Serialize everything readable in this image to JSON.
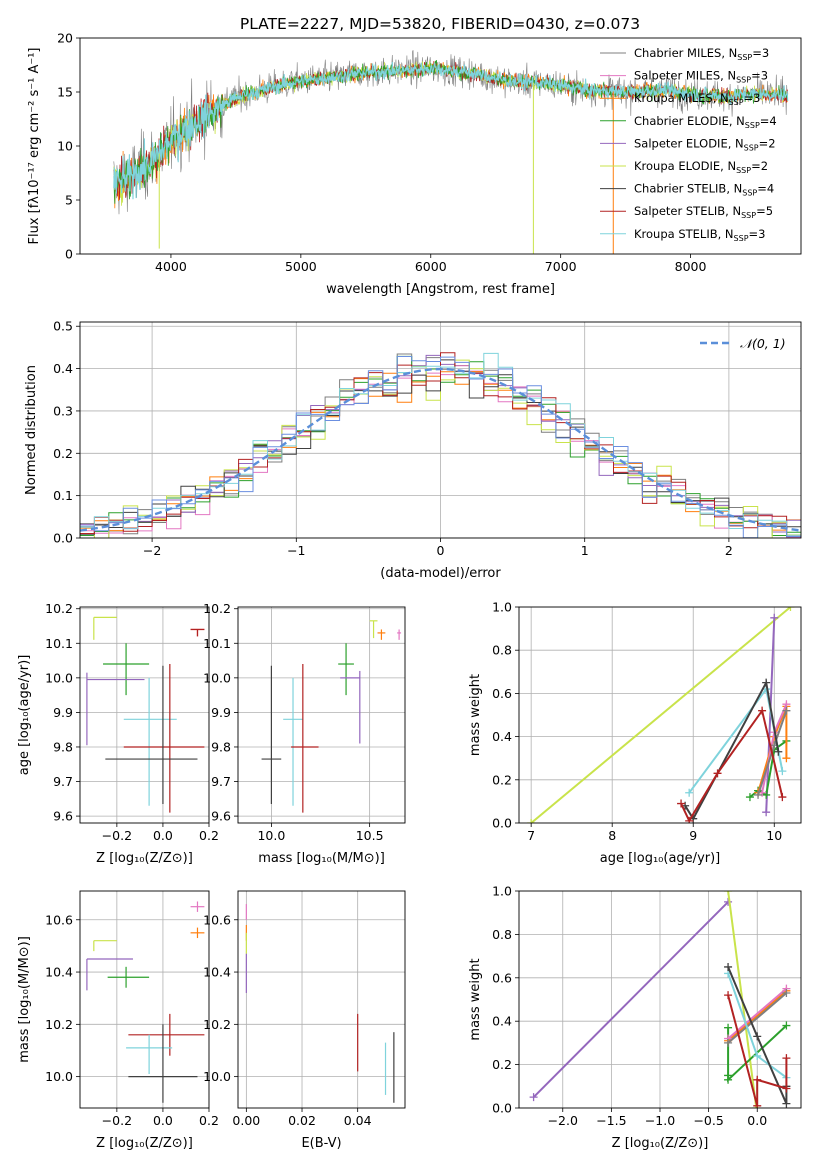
{
  "colors": {
    "Chabrier MILES": "#7f7f7f",
    "Salpeter MILES": "#e377c2",
    "Kroupa MILES": "#ff7f0e",
    "Chabrier ELODIE": "#2ca02c",
    "Salpeter ELODIE": "#9467bd",
    "Kroupa ELODIE": "#c9e34b",
    "Chabrier STELIB": "#404040",
    "Salpeter STELIB": "#b22222",
    "Kroupa STELIB": "#7fd3dc",
    "gauss": "#5b8fd9",
    "blue": "#6b8fe0"
  },
  "chart_data": [
    {
      "id": "spectrum",
      "type": "line",
      "title": "PLATE=2227, MJD=53820, FIBERID=0430, z=0.073",
      "xlabel": "wavelength [Angstrom, rest frame]",
      "ylabel": "Flux [fλ10⁻¹⁷ erg cm⁻² s⁻¹ A⁻¹]",
      "xlim": [
        3300,
        8850
      ],
      "ylim": [
        0,
        20
      ],
      "xticks": [
        4000,
        5000,
        6000,
        7000,
        8000
      ],
      "yticks": [
        0,
        5,
        10,
        15,
        20
      ],
      "grid": false,
      "legend": [
        {
          "name": "Chabrier MILES, N",
          "sub": "SSP",
          "tail": "=3",
          "color_key": "Chabrier MILES"
        },
        {
          "name": "Salpeter MILES, N",
          "sub": "SSP",
          "tail": "=3",
          "color_key": "Salpeter MILES"
        },
        {
          "name": "Kroupa MILES, N",
          "sub": "SSP",
          "tail": "=3",
          "color_key": "Kroupa MILES"
        },
        {
          "name": "Chabrier ELODIE, N",
          "sub": "SSP",
          "tail": "=4",
          "color_key": "Chabrier ELODIE"
        },
        {
          "name": "Salpeter ELODIE, N",
          "sub": "SSP",
          "tail": "=2",
          "color_key": "Salpeter ELODIE"
        },
        {
          "name": "Kroupa ELODIE, N",
          "sub": "SSP",
          "tail": "=2",
          "color_key": "Kroupa ELODIE"
        },
        {
          "name": "Chabrier STELIB, N",
          "sub": "SSP",
          "tail": "=4",
          "color_key": "Chabrier STELIB"
        },
        {
          "name": "Salpeter STELIB, N",
          "sub": "SSP",
          "tail": "=5",
          "color_key": "Salpeter STELIB"
        },
        {
          "name": "Kroupa STELIB, N",
          "sub": "SSP",
          "tail": "=3",
          "color_key": "Kroupa STELIB"
        }
      ],
      "continuum": [
        [
          3560,
          6.5
        ],
        [
          3700,
          7.2
        ],
        [
          3850,
          8.5
        ],
        [
          4000,
          10.5
        ],
        [
          4100,
          11.5
        ],
        [
          4300,
          13.0
        ],
        [
          4500,
          14.5
        ],
        [
          4800,
          15.5
        ],
        [
          5000,
          16.0
        ],
        [
          5200,
          16.3
        ],
        [
          5500,
          16.8
        ],
        [
          5800,
          17.0
        ],
        [
          6000,
          17.2
        ],
        [
          6300,
          16.8
        ],
        [
          6600,
          16.0
        ],
        [
          6900,
          15.8
        ],
        [
          7200,
          15.2
        ],
        [
          7500,
          15.0
        ],
        [
          7800,
          15.2
        ],
        [
          8000,
          14.8
        ],
        [
          8300,
          14.6
        ],
        [
          8500,
          14.8
        ],
        [
          8750,
          14.7
        ]
      ],
      "spikes": [
        {
          "x": 3910,
          "y": 0.5,
          "color_key": "Kroupa ELODIE"
        },
        {
          "x": 6790,
          "y": 0.0,
          "color_key": "Kroupa ELODIE"
        },
        {
          "x": 7405,
          "y": 0.0,
          "color_key": "Kroupa MILES"
        }
      ]
    },
    {
      "id": "residuals",
      "type": "histogram",
      "xlabel": "(data-model)/error",
      "ylabel": "Normed distribution",
      "xlim": [
        -2.5,
        2.5
      ],
      "ylim": [
        0,
        0.51
      ],
      "xticks": [
        -2,
        -1,
        0,
        1,
        2
      ],
      "yticks": [
        0.0,
        0.1,
        0.2,
        0.3,
        0.4,
        0.5
      ],
      "grid": true,
      "legend": "ᵊ(0, 1)",
      "legend_label": "𝒩(0, 1)",
      "bin_width": 0.1
    },
    {
      "id": "age_vs_Z",
      "type": "errorbar",
      "xlabel": "Z [log₁₀(Z/Z⊙)]",
      "ylabel": "age  [log₁₀(age/yr)]",
      "xlim": [
        -0.36,
        0.2
      ],
      "ylim": [
        9.58,
        10.205
      ],
      "xticks": [
        -0.2,
        0.0,
        0.2
      ],
      "yticks": [
        9.6,
        9.7,
        9.8,
        9.9,
        10.0,
        10.1,
        10.2
      ],
      "points": [
        {
          "key": "Kroupa ELODIE",
          "x": -0.3,
          "xerr": [
            0.0,
            0.1
          ],
          "y": 10.175,
          "yerr": [
            0.065,
            0.0
          ]
        },
        {
          "key": "Kroupa MILES",
          "x": 0.15,
          "xerr": [
            0.03,
            0.03
          ],
          "y": 10.14,
          "yerr": [
            0.02,
            0.0
          ]
        },
        {
          "key": "Salpeter MILES",
          "x": 0.15,
          "xerr": [
            0.03,
            0.03
          ],
          "y": 10.14,
          "yerr": [
            0.02,
            0.0
          ]
        },
        {
          "key": "Salpeter STELIB",
          "x": 0.15,
          "xerr": [
            0.03,
            0.03
          ],
          "y": 10.14,
          "yerr": [
            0.02,
            0.0
          ]
        },
        {
          "key": "Chabrier ELODIE",
          "x": -0.16,
          "xerr": [
            0.1,
            0.1
          ],
          "y": 10.04,
          "yerr": [
            0.09,
            0.06
          ]
        },
        {
          "key": "Salpeter ELODIE",
          "x": -0.33,
          "xerr": [
            0.0,
            0.25
          ],
          "y": 9.995,
          "yerr": [
            0.19,
            0.02
          ]
        },
        {
          "key": "Kroupa STELIB",
          "x": -0.06,
          "xerr": [
            0.11,
            0.12
          ],
          "y": 9.88,
          "yerr": [
            0.25,
            0.12
          ]
        },
        {
          "key": "Salpeter STELIB",
          "x": 0.03,
          "xerr": [
            0.2,
            0.15
          ],
          "y": 9.8,
          "yerr": [
            0.19,
            0.24
          ]
        },
        {
          "key": "Chabrier STELIB",
          "x": 0.0,
          "xerr": [
            0.25,
            0.15
          ],
          "y": 9.765,
          "yerr": [
            0.13,
            0.27
          ]
        }
      ]
    },
    {
      "id": "age_vs_mass",
      "type": "errorbar",
      "xlabel": "mass [log₁₀(M/M⊙)]",
      "xlim": [
        9.83,
        10.68
      ],
      "ylim": [
        9.58,
        10.205
      ],
      "xticks": [
        10.0,
        10.5
      ],
      "yticks": [
        9.6,
        9.7,
        9.8,
        9.9,
        10.0,
        10.1,
        10.2
      ],
      "points": [
        {
          "key": "Kroupa ELODIE",
          "x": 10.52,
          "xerr": [
            0.02,
            0.02
          ],
          "y": 10.165,
          "yerr": [
            0.05,
            0.0
          ]
        },
        {
          "key": "Kroupa MILES",
          "x": 10.56,
          "xerr": [
            0.02,
            0.02
          ],
          "y": 10.13,
          "yerr": [
            0.02,
            0.01
          ]
        },
        {
          "key": "Salpeter MILES",
          "x": 10.65,
          "xerr": [
            0.01,
            0.01
          ],
          "y": 10.13,
          "yerr": [
            0.02,
            0.01
          ]
        },
        {
          "key": "Chabrier ELODIE",
          "x": 10.38,
          "xerr": [
            0.04,
            0.04
          ],
          "y": 10.04,
          "yerr": [
            0.09,
            0.06
          ]
        },
        {
          "key": "Salpeter ELODIE",
          "x": 10.45,
          "xerr": [
            0.1,
            0.0
          ],
          "y": 10.0,
          "yerr": [
            0.19,
            0.02
          ]
        },
        {
          "key": "Kroupa STELIB",
          "x": 10.11,
          "xerr": [
            0.05,
            0.05
          ],
          "y": 9.88,
          "yerr": [
            0.25,
            0.12
          ]
        },
        {
          "key": "Salpeter STELIB",
          "x": 10.16,
          "xerr": [
            0.06,
            0.08
          ],
          "y": 9.8,
          "yerr": [
            0.19,
            0.24
          ]
        },
        {
          "key": "Chabrier STELIB",
          "x": 10.0,
          "xerr": [
            0.05,
            0.05
          ],
          "y": 9.765,
          "yerr": [
            0.13,
            0.27
          ]
        }
      ]
    },
    {
      "id": "weight_vs_age",
      "type": "line",
      "xlabel": "age  [log₁₀(age/yr)]",
      "ylabel": "mass weight",
      "xlim": [
        6.85,
        10.33
      ],
      "ylim": [
        0,
        1
      ],
      "xticks": [
        7,
        8,
        9,
        10
      ],
      "yticks": [
        0.0,
        0.2,
        0.4,
        0.6,
        0.8,
        1.0
      ],
      "grid": true,
      "series": [
        {
          "key": "Kroupa ELODIE",
          "x": [
            7.0,
            10.2
          ],
          "y": [
            0.0,
            1.0
          ]
        },
        {
          "key": "Salpeter ELODIE",
          "x": [
            9.9,
            10.0
          ],
          "y": [
            0.05,
            0.95
          ]
        },
        {
          "key": "Chabrier ELODIE",
          "x": [
            9.7,
            9.8,
            9.9,
            10.0,
            10.15
          ],
          "y": [
            0.12,
            0.15,
            0.13,
            0.34,
            0.38
          ]
        },
        {
          "key": "Kroupa MILES",
          "x": [
            9.8,
            10.0,
            10.15,
            10.15
          ],
          "y": [
            0.14,
            0.4,
            0.54,
            0.3
          ]
        },
        {
          "key": "Salpeter MILES",
          "x": [
            9.85,
            10.0,
            10.15
          ],
          "y": [
            0.14,
            0.42,
            0.55
          ]
        },
        {
          "key": "Chabrier MILES",
          "x": [
            9.8,
            10.0,
            10.15
          ],
          "y": [
            0.13,
            0.36,
            0.52
          ]
        },
        {
          "key": "Kroupa STELIB",
          "x": [
            8.95,
            9.9,
            10.1
          ],
          "y": [
            0.14,
            0.62,
            0.24
          ]
        },
        {
          "key": "Chabrier STELIB",
          "x": [
            8.9,
            9.0,
            9.9,
            10.05
          ],
          "y": [
            0.08,
            0.02,
            0.65,
            0.33
          ]
        },
        {
          "key": "Salpeter STELIB",
          "x": [
            8.85,
            8.95,
            9.3,
            9.85,
            10.1
          ],
          "y": [
            0.09,
            0.01,
            0.23,
            0.52,
            0.12
          ]
        }
      ]
    },
    {
      "id": "mass_vs_Z",
      "type": "errorbar",
      "xlabel": "Z [log₁₀(Z/Z⊙)]",
      "ylabel": "mass [log₁₀(M/M⊙)]",
      "xlim": [
        -0.36,
        0.2
      ],
      "ylim": [
        9.88,
        10.71
      ],
      "xticks": [
        -0.2,
        0.0,
        0.2
      ],
      "yticks": [
        10.0,
        10.2,
        10.4,
        10.6
      ],
      "points": [
        {
          "key": "Salpeter MILES",
          "x": 0.15,
          "xerr": [
            0.03,
            0.03
          ],
          "y": 10.65,
          "yerr": [
            0.02,
            0.02
          ]
        },
        {
          "key": "Kroupa MILES",
          "x": 0.15,
          "xerr": [
            0.03,
            0.03
          ],
          "y": 10.55,
          "yerr": [
            0.02,
            0.02
          ]
        },
        {
          "key": "Kroupa ELODIE",
          "x": -0.3,
          "xerr": [
            0.0,
            0.1
          ],
          "y": 10.52,
          "yerr": [
            0.04,
            0.0
          ]
        },
        {
          "key": "Salpeter ELODIE",
          "x": -0.33,
          "xerr": [
            0.0,
            0.2
          ],
          "y": 10.45,
          "yerr": [
            0.12,
            0.0
          ]
        },
        {
          "key": "Chabrier ELODIE",
          "x": -0.16,
          "xerr": [
            0.08,
            0.1
          ],
          "y": 10.38,
          "yerr": [
            0.04,
            0.04
          ]
        },
        {
          "key": "Salpeter STELIB",
          "x": 0.03,
          "xerr": [
            0.18,
            0.15
          ],
          "y": 10.16,
          "yerr": [
            0.08,
            0.08
          ]
        },
        {
          "key": "Kroupa STELIB",
          "x": -0.06,
          "xerr": [
            0.1,
            0.1
          ],
          "y": 10.11,
          "yerr": [
            0.1,
            0.05
          ]
        },
        {
          "key": "Chabrier STELIB",
          "x": 0.0,
          "xerr": [
            0.15,
            0.15
          ],
          "y": 10.0,
          "yerr": [
            0.1,
            0.2
          ]
        }
      ]
    },
    {
      "id": "mass_vs_ebv",
      "type": "errorbar",
      "xlabel": "E(B-V)",
      "xlim": [
        -0.003,
        0.057
      ],
      "ylim": [
        9.88,
        10.71
      ],
      "xticks": [
        0.0,
        0.02,
        0.04
      ],
      "yticks": [
        10.0,
        10.2,
        10.4,
        10.6
      ],
      "points": [
        {
          "key": "Salpeter MILES",
          "x": 0.0,
          "xerr": [
            0.0,
            0.0
          ],
          "y": 10.63,
          "yerr": [
            0.03,
            0.03
          ]
        },
        {
          "key": "Kroupa MILES",
          "x": 0.0,
          "xerr": [
            0.0,
            0.0
          ],
          "y": 10.55,
          "yerr": [
            0.03,
            0.03
          ]
        },
        {
          "key": "Kroupa ELODIE",
          "x": 0.0,
          "xerr": [
            0.0,
            0.0
          ],
          "y": 10.52,
          "yerr": [
            0.05,
            0.03
          ]
        },
        {
          "key": "Salpeter ELODIE",
          "x": 0.0,
          "xerr": [
            0.0,
            0.0
          ],
          "y": 10.42,
          "yerr": [
            0.1,
            0.05
          ]
        },
        {
          "key": "Salpeter STELIB",
          "x": 0.04,
          "xerr": [
            0.0,
            0.0
          ],
          "y": 10.12,
          "yerr": [
            0.1,
            0.12
          ]
        },
        {
          "key": "Kroupa STELIB",
          "x": 0.05,
          "xerr": [
            0.0,
            0.0
          ],
          "y": 10.03,
          "yerr": [
            0.1,
            0.1
          ]
        },
        {
          "key": "Chabrier STELIB",
          "x": 0.053,
          "xerr": [
            0.0,
            0.0
          ],
          "y": 10.05,
          "yerr": [
            0.15,
            0.12
          ]
        }
      ]
    },
    {
      "id": "weight_vs_Z",
      "type": "line",
      "xlabel": "Z [log₁₀(Z/Z⊙)]",
      "ylabel": "mass weight",
      "xlim": [
        -2.45,
        0.45
      ],
      "ylim": [
        0,
        1
      ],
      "xticks": [
        -2.0,
        -1.5,
        -1.0,
        -0.5,
        0.0
      ],
      "yticks": [
        0.0,
        0.2,
        0.4,
        0.6,
        0.8,
        1.0
      ],
      "grid": true,
      "series": [
        {
          "key": "Salpeter ELODIE",
          "x": [
            -2.3,
            -0.3
          ],
          "y": [
            0.05,
            0.95
          ]
        },
        {
          "key": "Kroupa ELODIE",
          "x": [
            -0.3,
            -0.01
          ],
          "y": [
            1.0,
            0.0
          ]
        },
        {
          "key": "Chabrier ELODIE",
          "x": [
            -0.3,
            -0.3,
            -0.3,
            0.3
          ],
          "y": [
            0.15,
            0.37,
            0.13,
            0.38
          ]
        },
        {
          "key": "Kroupa MILES",
          "x": [
            -0.3,
            0.3
          ],
          "y": [
            0.31,
            0.54
          ]
        },
        {
          "key": "Salpeter MILES",
          "x": [
            -0.3,
            0.3
          ],
          "y": [
            0.32,
            0.55
          ]
        },
        {
          "key": "Chabrier MILES",
          "x": [
            -0.3,
            0.3
          ],
          "y": [
            0.3,
            0.53
          ]
        },
        {
          "key": "Kroupa STELIB",
          "x": [
            -0.3,
            0.0,
            0.3
          ],
          "y": [
            0.62,
            0.24,
            0.14
          ]
        },
        {
          "key": "Chabrier STELIB",
          "x": [
            -0.3,
            0.0,
            0.3,
            0.3
          ],
          "y": [
            0.65,
            0.33,
            0.02,
            0.1
          ]
        },
        {
          "key": "Salpeter STELIB",
          "x": [
            -0.3,
            0.0,
            0.0,
            0.3,
            0.3
          ],
          "y": [
            0.52,
            0.01,
            0.13,
            0.09,
            0.23
          ]
        }
      ]
    }
  ]
}
